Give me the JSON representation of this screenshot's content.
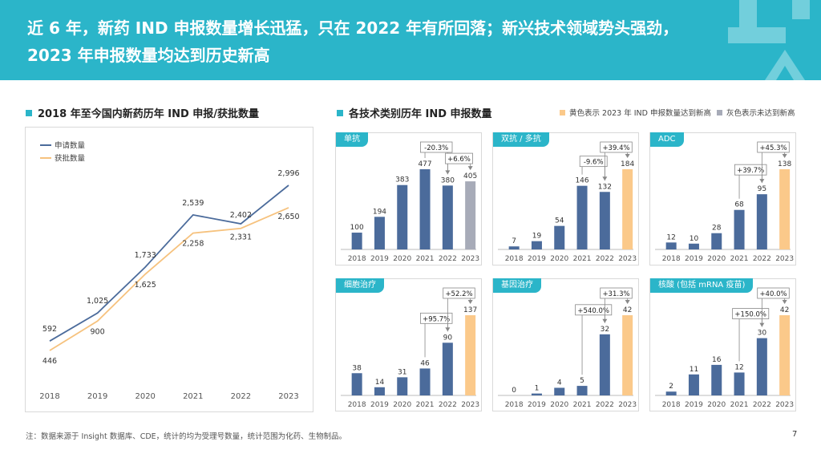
{
  "header": {
    "title": "近 6 年，新药 IND 申报数量增长迅猛，只在 2022 年有所回落；新兴技术领域势头强劲，2023 年申报数量均达到历史新高"
  },
  "left_section": {
    "title": "2018 年至今国内新药历年 IND 申报/获批数量"
  },
  "right_section": {
    "title": "各技术类别历年 IND 申报数量",
    "legend_orange": "黄色表示 2023 年 IND 申报数量达到新高",
    "legend_gray": "灰色表示未达到新高"
  },
  "colors": {
    "teal": "#2bb5c9",
    "blue": "#4b6b9b",
    "orange": "#fbc98a",
    "gray": "#a7abb8",
    "line_blue": "#4b6b9b",
    "line_orange": "#f6c27e"
  },
  "chart_data": [
    {
      "type": "line",
      "x": [
        "2018",
        "2019",
        "2020",
        "2021",
        "2022",
        "2023"
      ],
      "series": [
        {
          "name": "申请数量",
          "values": [
            592,
            1025,
            1733,
            2539,
            2402,
            2996
          ]
        },
        {
          "name": "获批数量",
          "values": [
            446,
            900,
            1625,
            2258,
            2331,
            2650
          ]
        }
      ],
      "legend": "top-left",
      "grid": false
    },
    {
      "type": "bar",
      "name": "单抗",
      "categories": [
        "2018",
        "2019",
        "2020",
        "2021",
        "2022",
        "2023"
      ],
      "values": [
        100,
        194,
        383,
        477,
        380,
        405
      ],
      "last_bar_color": "gray",
      "annotations": [
        {
          "from": 3,
          "to": 4,
          "label": "-20.3%"
        },
        {
          "from": 4,
          "to": 5,
          "label": "+6.6%"
        }
      ]
    },
    {
      "type": "bar",
      "name": "双抗 / 多抗",
      "categories": [
        "2018",
        "2019",
        "2020",
        "2021",
        "2022",
        "2023"
      ],
      "values": [
        7,
        19,
        54,
        146,
        132,
        184
      ],
      "last_bar_color": "orange",
      "annotations": [
        {
          "from": 3,
          "to": 4,
          "label": "-9.6%"
        },
        {
          "from": 4,
          "to": 5,
          "label": "+39.4%"
        }
      ]
    },
    {
      "type": "bar",
      "name": "ADC",
      "categories": [
        "2018",
        "2019",
        "2020",
        "2021",
        "2022",
        "2023"
      ],
      "values": [
        12,
        10,
        28,
        68,
        95,
        138
      ],
      "last_bar_color": "orange",
      "annotations": [
        {
          "from": 3,
          "to": 4,
          "label": "+39.7%"
        },
        {
          "from": 4,
          "to": 5,
          "label": "+45.3%"
        }
      ]
    },
    {
      "type": "bar",
      "name": "细胞治疗",
      "categories": [
        "2018",
        "2019",
        "2020",
        "2021",
        "2022",
        "2023"
      ],
      "values": [
        38,
        14,
        31,
        46,
        90,
        137
      ],
      "last_bar_color": "orange",
      "annotations": [
        {
          "from": 3,
          "to": 4,
          "label": "+95.7%"
        },
        {
          "from": 4,
          "to": 5,
          "label": "+52.2%"
        }
      ]
    },
    {
      "type": "bar",
      "name": "基因治疗",
      "categories": [
        "2018",
        "2019",
        "2020",
        "2021",
        "2022",
        "2023"
      ],
      "values": [
        0,
        1,
        4,
        5,
        32,
        42
      ],
      "last_bar_color": "orange",
      "annotations": [
        {
          "from": 3,
          "to": 4,
          "label": "+540.0%"
        },
        {
          "from": 4,
          "to": 5,
          "label": "+31.3%"
        }
      ]
    },
    {
      "type": "bar",
      "name": "核酸 (包括 mRNA 疫苗)",
      "categories": [
        "2018",
        "2019",
        "2020",
        "2021",
        "2022",
        "2023"
      ],
      "values": [
        2,
        11,
        16,
        12,
        30,
        42
      ],
      "last_bar_color": "orange",
      "annotations": [
        {
          "from": 3,
          "to": 4,
          "label": "+150.0%"
        },
        {
          "from": 4,
          "to": 5,
          "label": "+40.0%"
        }
      ]
    }
  ],
  "footnote": "注：数据来源于 Insight 数据库、CDE，统计的均为受理号数量，统计范围为化药、生物制品。",
  "page_number": "7"
}
